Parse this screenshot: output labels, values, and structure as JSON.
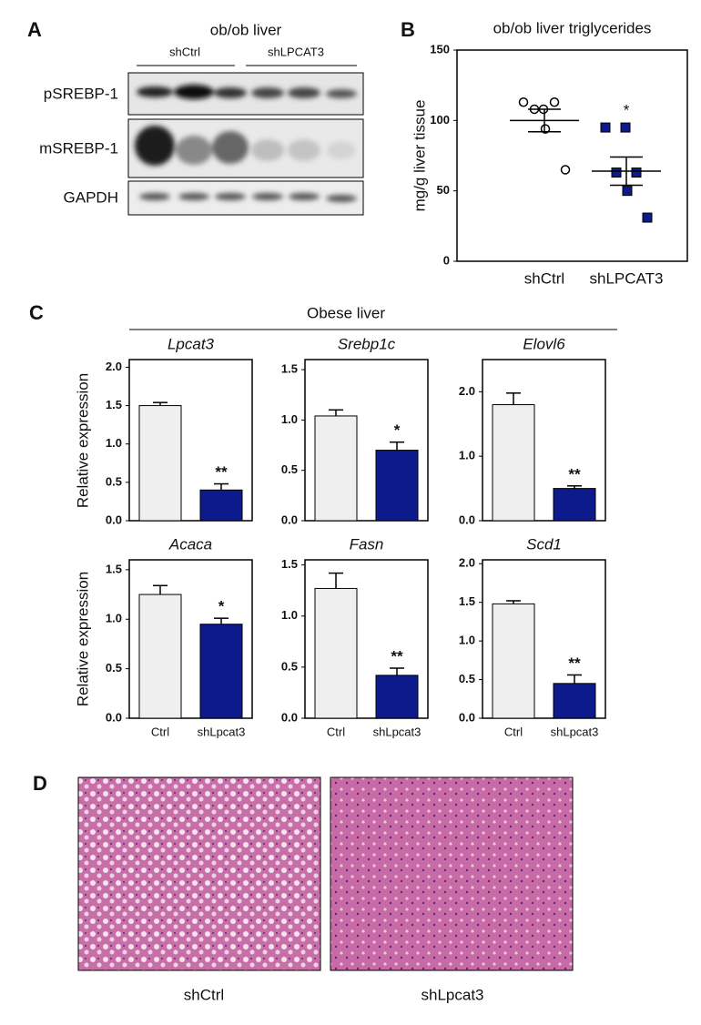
{
  "panels": [
    "A",
    "B",
    "C",
    "D"
  ],
  "blot": {
    "title": "ob/ob liver",
    "groups": [
      "shCtrl",
      "shLPCAT3"
    ],
    "rows": [
      "pSREBP-1",
      "mSREBP-1",
      "GAPDH"
    ]
  },
  "panel_c": {
    "title": "Obese liver",
    "ylabel": "Relative expression"
  },
  "histology": {
    "labels": [
      "shCtrl",
      "shLpcat3"
    ]
  },
  "chart_data": [
    {
      "type": "scatter",
      "title": "ob/ob liver triglycerides",
      "ylabel": "mg/g liver tissue",
      "categories": [
        "shCtrl",
        "shLPCAT3"
      ],
      "ylim": [
        0,
        150
      ],
      "yticks": [
        0,
        50,
        100,
        150
      ],
      "series": [
        {
          "color": "#ffffff",
          "marker": "circle",
          "values": [
            113,
            108,
            108,
            113,
            94,
            65
          ]
        },
        {
          "color": "#0d1a8c",
          "marker": "square",
          "values": [
            95,
            95,
            63,
            63,
            50,
            31
          ]
        }
      ],
      "means": [
        100,
        64
      ],
      "errors": [
        8,
        10
      ],
      "annotations": [
        null,
        "*"
      ]
    },
    {
      "type": "bar",
      "title": "Lpcat3",
      "categories": [
        null,
        null
      ],
      "values": [
        1.5,
        0.4
      ],
      "errors": [
        0.04,
        0.08
      ],
      "ylim": [
        0,
        2.1
      ],
      "yticks": [
        {
          "value": 0,
          "label": "0.0"
        },
        {
          "value": 0.5,
          "label": "0.5"
        },
        {
          "value": 1,
          "label": "1.0"
        },
        {
          "value": 1.5,
          "label": "1.5"
        },
        {
          "value": 2,
          "label": "2.0"
        }
      ],
      "colors": [
        "#efefef",
        "#0d1a8c"
      ],
      "annotations": [
        null,
        "**"
      ]
    },
    {
      "type": "bar",
      "title": "Srebp1c",
      "categories": [
        null,
        null
      ],
      "values": [
        1.04,
        0.7
      ],
      "errors": [
        0.06,
        0.08
      ],
      "ylim": [
        0,
        1.6
      ],
      "yticks": [
        {
          "value": 0,
          "label": "0.0"
        },
        {
          "value": 0.5,
          "label": "0.5"
        },
        {
          "value": 1,
          "label": "1.0"
        },
        1.5
      ],
      "colors": [
        "#efefef",
        "#0d1a8c"
      ],
      "annotations": [
        null,
        "*"
      ]
    },
    {
      "type": "bar",
      "title": "Elovl6",
      "categories": [
        null,
        null
      ],
      "values": [
        1.8,
        0.5
      ],
      "errors": [
        0.18,
        0.04
      ],
      "ylim": [
        0,
        2.5
      ],
      "yticks": [
        {
          "value": 0,
          "label": "0.0"
        },
        {
          "value": 1,
          "label": "1.0"
        },
        {
          "value": 2,
          "label": "2.0"
        }
      ],
      "colors": [
        "#efefef",
        "#0d1a8c"
      ],
      "annotations": [
        null,
        "**"
      ]
    },
    {
      "type": "bar",
      "title": "Acaca",
      "categories": [
        "Ctrl",
        "shLpcat3"
      ],
      "values": [
        1.25,
        0.95
      ],
      "errors": [
        0.09,
        0.06
      ],
      "ylim": [
        0,
        1.6
      ],
      "yticks": [
        {
          "value": 0,
          "label": "0.0"
        },
        {
          "value": 0.5,
          "label": "0.5"
        },
        {
          "value": 1,
          "label": "1.0"
        },
        1.5
      ],
      "colors": [
        "#efefef",
        "#0d1a8c"
      ],
      "annotations": [
        null,
        "*"
      ]
    },
    {
      "type": "bar",
      "title": "Fasn",
      "categories": [
        "Ctrl",
        "shLpcat3"
      ],
      "values": [
        1.27,
        0.42
      ],
      "errors": [
        0.15,
        0.07
      ],
      "ylim": [
        0,
        1.55
      ],
      "yticks": [
        {
          "value": 0,
          "label": "0.0"
        },
        {
          "value": 0.5,
          "label": "0.5"
        },
        {
          "value": 1,
          "label": "1.0"
        },
        1.5
      ],
      "colors": [
        "#efefef",
        "#0d1a8c"
      ],
      "annotations": [
        null,
        "**"
      ]
    },
    {
      "type": "bar",
      "title": "Scd1",
      "categories": [
        "Ctrl",
        "shLpcat3"
      ],
      "values": [
        1.48,
        0.45
      ],
      "errors": [
        0.04,
        0.11
      ],
      "ylim": [
        0,
        2.05
      ],
      "yticks": [
        {
          "value": 0,
          "label": "0.0"
        },
        {
          "value": 0.5,
          "label": "0.5"
        },
        {
          "value": 1,
          "label": "1.0"
        },
        {
          "value": 1.5,
          "label": "1.5"
        },
        {
          "value": 2,
          "label": "2.0"
        }
      ],
      "colors": [
        "#efefef",
        "#0d1a8c"
      ],
      "annotations": [
        null,
        "**"
      ]
    }
  ]
}
